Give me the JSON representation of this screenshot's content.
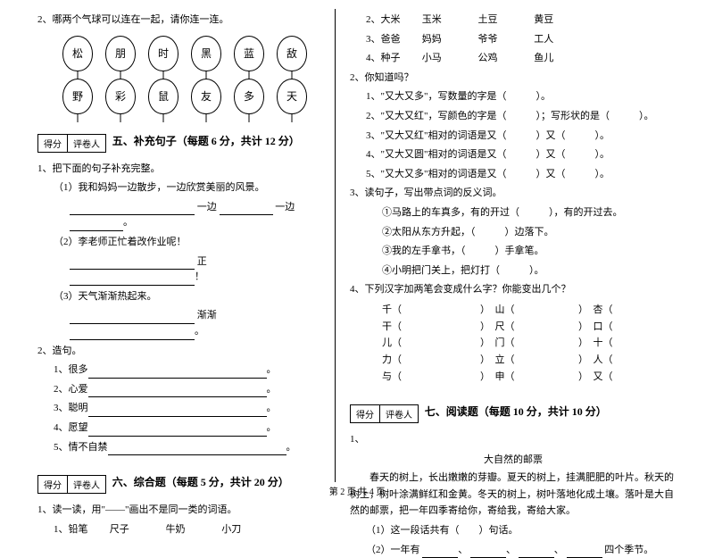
{
  "left": {
    "q2_header": "2、哪两个气球可以连在一起，请你连一连。",
    "balloons_row1": [
      "松",
      "朋",
      "时",
      "黑",
      "蓝",
      "敌"
    ],
    "balloons_row2": [
      "野",
      "彩",
      "鼠",
      "友",
      "多",
      "天"
    ],
    "score_label1": "得分",
    "score_label2": "评卷人",
    "sec5_title": "五、补充句子（每题 6 分，共计 12 分）",
    "s5_q1": "1、把下面的句子补充完整。",
    "s5_q1_1": "（1）我和妈妈一边散步，一边欣赏美丽的风景。",
    "s5_q1_1b_a": "一边",
    "s5_q1_1b_b": "一边",
    "s5_q1_2": "（2）李老师正忙着改作业呢！",
    "s5_q1_2b": "正",
    "s5_q1_3": "（3）天气渐渐热起来。",
    "s5_q1_3b": "渐渐",
    "s5_q2": "2、造句。",
    "s5_q2_1": "1、很多",
    "s5_q2_2": "2、心爱",
    "s5_q2_3": "3、聪明",
    "s5_q2_4": "4、愿望",
    "s5_q2_5": "5、情不自禁",
    "sec6_title": "六、综合题（每题 5 分，共计 20 分）",
    "s6_q1": "1、读一读，用\"——\"画出不是同一类的词语。",
    "s6_q1_1": "1、铅笔",
    "s6_q1_1b": "尺子",
    "s6_q1_1c": "牛奶",
    "s6_q1_1d": "小刀"
  },
  "right": {
    "r_row2": [
      "2、大米",
      "玉米",
      "土豆",
      "黄豆"
    ],
    "r_row3": [
      "3、爸爸",
      "妈妈",
      "爷爷",
      "工人"
    ],
    "r_row4": [
      "4、种子",
      "小马",
      "公鸡",
      "鱼儿"
    ],
    "s6_q2": "2、你知道吗？",
    "s6_q2_1": "1、\"又大又多\"，写数量的字是（　　　）。",
    "s6_q2_2": "2、\"又大又红\"，写颜色的字是（　　　）；写形状的是（　　　）。",
    "s6_q2_3": "3、\"又大又红\"相对的词语是又（　　　）又（　　　）。",
    "s6_q2_4": "4、\"又大又圆\"相对的词语是又（　　　）又（　　　）。",
    "s6_q2_5": "5、\"又大又多\"相对的词语是又（　　　）又（　　　）。",
    "s6_q3": "3、读句子，写出带点词的反义词。",
    "s6_q3_1": "①马路上的车真多，有的开过（　　　），有的开过去。",
    "s6_q3_2": "②太阳从东方升起，（　　　）边落下。",
    "s6_q3_3": "③我的左手拿书，（　　　）手拿笔。",
    "s6_q3_4": "④小明把门关上，把灯打（　　　）。",
    "s6_q4": "4、下列汉字加两笔会变成什么字？你能变出几个？",
    "char_rows": [
      [
        "千（",
        "）　山（",
        "）　杏（",
        "）"
      ],
      [
        "干（",
        "）　尺（",
        "）　口（",
        "）"
      ],
      [
        "儿（",
        "）　门（",
        "）　十（",
        "）"
      ],
      [
        "力（",
        "）　立（",
        "）　人（",
        "）"
      ],
      [
        "与（",
        "）　申（",
        "）　又（",
        "）"
      ]
    ],
    "score_label1": "得分",
    "score_label2": "评卷人",
    "sec7_title": "七、阅读题（每题 10 分，共计 10 分）",
    "s7_q1": "1、",
    "s7_title": "大自然的邮票",
    "s7_para": "春天的树上，长出嫩嫩的芽瓣。夏天的树上，挂满肥肥的叶片。秋天的树上，树叶涂满鲜红和金黄。冬天的树上，树叶落地化成土壤。落叶是大自然的邮票，把一年四季寄给你，寄给我，寄给大家。",
    "s7_sub1": "（1）这一段话共有（　　）句话。",
    "s7_sub2_a": "（2）一年有",
    "s7_sub2_b": "四个季节。"
  },
  "footer": "第 2 页  共 4 页"
}
